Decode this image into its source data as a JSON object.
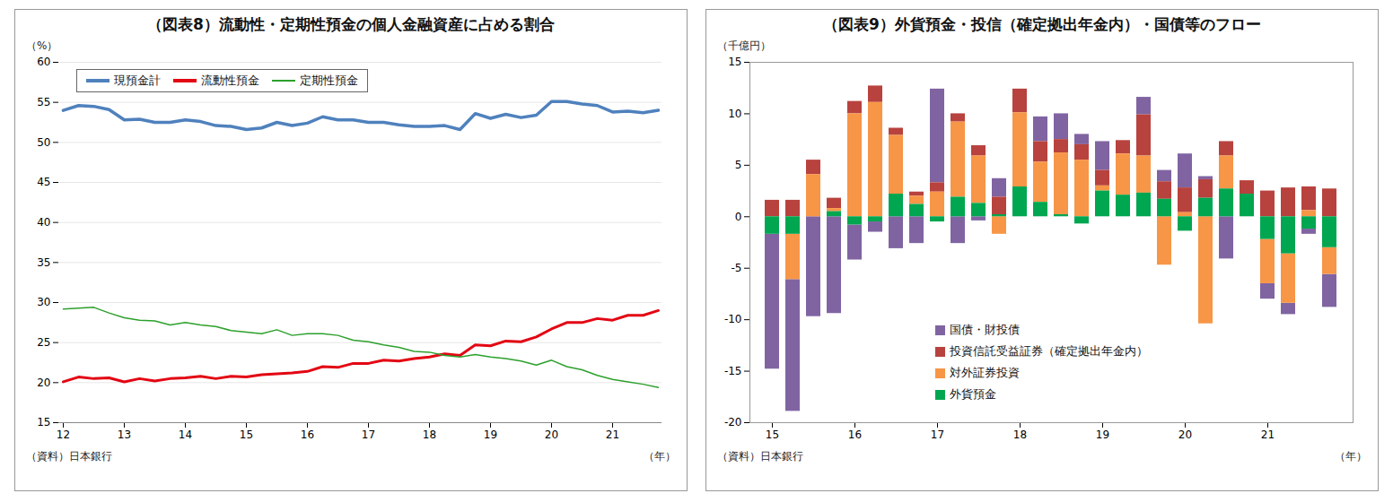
{
  "chart_data": [
    {
      "type": "line",
      "title": "（図表8）流動性・定期性預金の個人金融資産に占める割合",
      "ylabel": "（%）",
      "xlabel": "（年）",
      "source": "（資料）日本銀行",
      "categories": [
        "12",
        null,
        null,
        null,
        "13",
        null,
        null,
        null,
        "14",
        null,
        null,
        null,
        "15",
        null,
        null,
        null,
        "16",
        null,
        null,
        null,
        "17",
        null,
        null,
        null,
        "18",
        null,
        null,
        null,
        "19",
        null,
        null,
        null,
        "20",
        null,
        null,
        null,
        "21",
        null,
        null,
        null
      ],
      "series": [
        {
          "name": "現預金計",
          "color": "#4f81bd",
          "values": [
            54.0,
            54.6,
            54.5,
            54.1,
            52.8,
            52.9,
            52.5,
            52.5,
            52.8,
            52.6,
            52.1,
            52.0,
            51.6,
            51.8,
            52.5,
            52.1,
            52.4,
            53.2,
            52.8,
            52.8,
            52.5,
            52.5,
            52.2,
            52.0,
            52.0,
            52.1,
            51.6,
            53.6,
            53.0,
            53.5,
            53.1,
            53.4,
            55.1,
            55.1,
            54.8,
            54.6,
            53.8,
            53.9,
            53.7,
            54.0
          ]
        },
        {
          "name": "流動性預金",
          "color": "#e30613",
          "values": [
            20.1,
            20.7,
            20.5,
            20.6,
            20.1,
            20.5,
            20.2,
            20.5,
            20.6,
            20.8,
            20.5,
            20.8,
            20.7,
            21.0,
            21.1,
            21.2,
            21.4,
            22.0,
            21.9,
            22.4,
            22.4,
            22.8,
            22.7,
            23.0,
            23.2,
            23.6,
            23.4,
            24.7,
            24.6,
            25.2,
            25.1,
            25.7,
            26.7,
            27.5,
            27.5,
            28.0,
            27.8,
            28.4,
            28.4,
            29.0
          ]
        },
        {
          "name": "定期性預金",
          "color": "#2ca02c",
          "values": [
            29.2,
            29.3,
            29.4,
            28.7,
            28.1,
            27.8,
            27.7,
            27.2,
            27.5,
            27.2,
            27.0,
            26.5,
            26.3,
            26.1,
            26.6,
            25.9,
            26.1,
            26.1,
            25.9,
            25.3,
            25.1,
            24.7,
            24.4,
            23.9,
            23.8,
            23.4,
            23.2,
            23.5,
            23.2,
            23.0,
            22.7,
            22.2,
            22.8,
            22.0,
            21.6,
            20.9,
            20.4,
            20.1,
            19.8,
            19.4
          ]
        }
      ],
      "ylim": [
        15,
        60
      ],
      "yticks": [
        15,
        20,
        25,
        30,
        35,
        40,
        45,
        50,
        55,
        60
      ],
      "grid": true,
      "legend": "top-left"
    },
    {
      "type": "bar",
      "stacked": true,
      "title": "（図表9）外貨預金・投信（確定拠出年金内）・国債等のフロー",
      "ylabel": "（千億円）",
      "xlabel": "（年）",
      "source": "（資料）日本銀行",
      "categories": [
        "15",
        null,
        null,
        null,
        "16",
        null,
        null,
        null,
        "17",
        null,
        null,
        null,
        "18",
        null,
        null,
        null,
        "19",
        null,
        null,
        null,
        "20",
        null,
        null,
        null,
        "21",
        null,
        null,
        null
      ],
      "series": [
        {
          "name": "国債・財投債",
          "color": "#8064a2",
          "values": [
            -13.1,
            -12.8,
            -9.7,
            -9.4,
            -3.4,
            -1.0,
            -3.1,
            -2.6,
            9.1,
            -2.6,
            -0.4,
            1.8,
            0,
            2.4,
            2.5,
            1.0,
            2.8,
            0,
            1.7,
            1.1,
            3.3,
            0.3,
            -4.1,
            0,
            -1.5,
            -1.1,
            -0.5,
            -3.2
          ]
        },
        {
          "name": "投資信託受益証券（確定拠出年金内）",
          "color": "#b8423e",
          "values": [
            1.6,
            1.6,
            1.4,
            1.0,
            1.2,
            1.6,
            0.7,
            0.4,
            0.9,
            0.8,
            1.0,
            1.7,
            2.3,
            2.0,
            1.3,
            1.5,
            1.5,
            1.3,
            4.0,
            1.7,
            2.4,
            1.8,
            1.4,
            1.3,
            2.5,
            2.8,
            2.3,
            2.7
          ]
        },
        {
          "name": "対外証券投資",
          "color": "#f79646",
          "values": [
            0,
            -4.4,
            4.1,
            0.3,
            10.0,
            11.1,
            5.7,
            0.8,
            2.4,
            7.3,
            4.6,
            -1.7,
            7.2,
            3.9,
            6.0,
            5.5,
            0.5,
            4.0,
            3.6,
            -4.7,
            0.4,
            -10.4,
            3.2,
            0,
            -4.3,
            -4.8,
            0.6,
            -2.6
          ]
        },
        {
          "name": "外貨預金",
          "color": "#00a650",
          "values": [
            -1.7,
            -1.7,
            0,
            0.5,
            -0.8,
            -0.5,
            2.2,
            1.2,
            -0.5,
            1.9,
            1.3,
            0.2,
            2.9,
            1.4,
            0.2,
            -0.7,
            2.5,
            2.1,
            2.3,
            1.7,
            -1.4,
            1.8,
            2.7,
            2.2,
            -2.2,
            -3.6,
            -1.2,
            -3.0
          ]
        }
      ],
      "ylim": [
        -20,
        15
      ],
      "yticks": [
        -20,
        -15,
        -10,
        -5,
        0,
        5,
        10,
        15
      ],
      "grid": false,
      "legend": "bottom-left"
    }
  ]
}
